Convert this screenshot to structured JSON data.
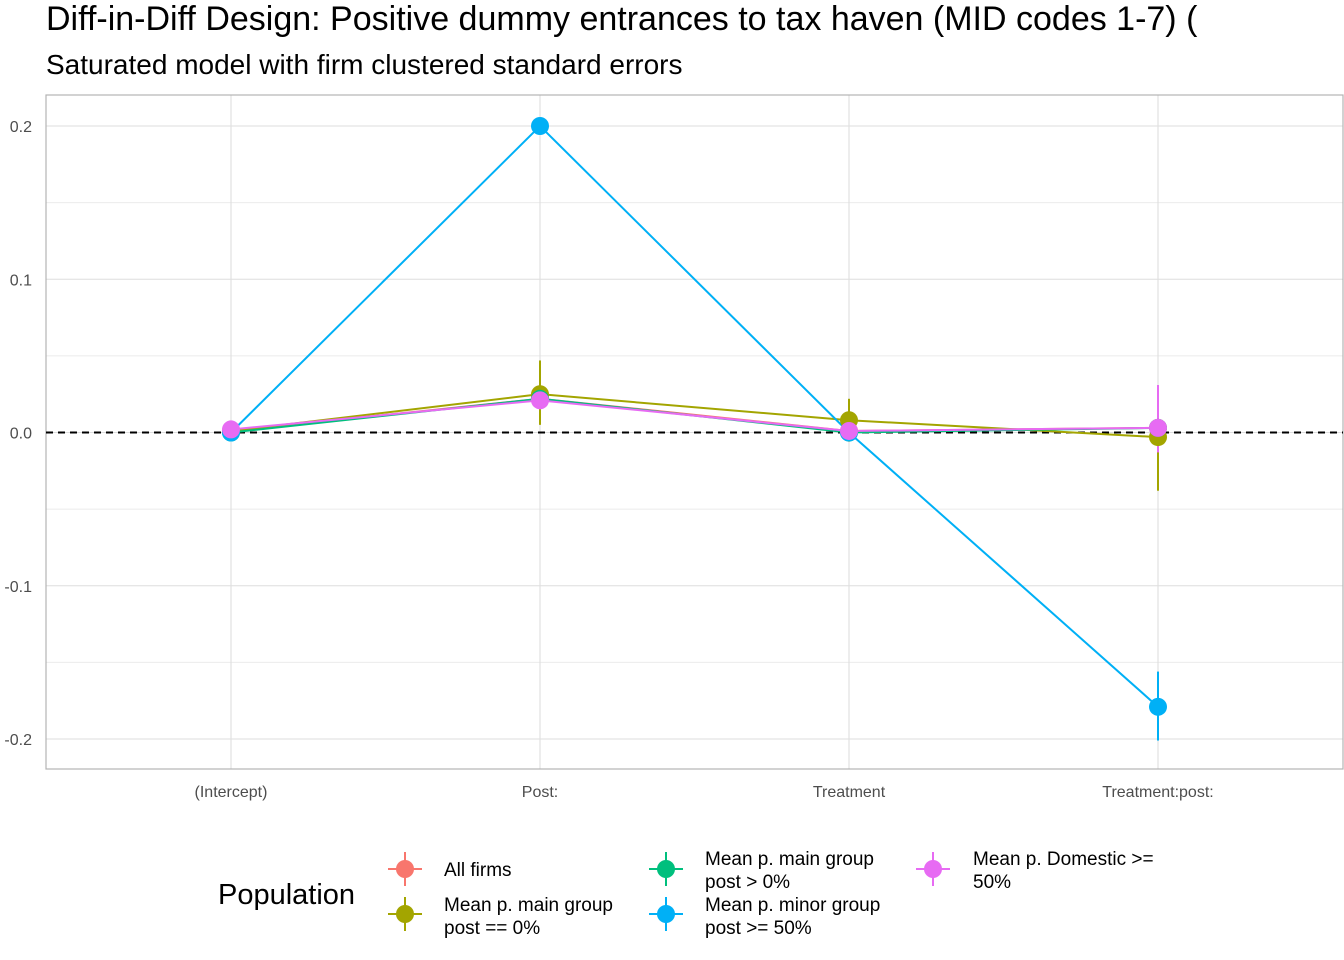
{
  "chart_data": {
    "type": "scatter",
    "title": "Diff-in-Diff Design: Positive dummy entrances to tax haven (MID codes 1-7)  (",
    "subtitle": "Saturated model with firm clustered standard errors",
    "xlabel": "",
    "ylabel": "",
    "categories": [
      "(Intercept)",
      "Post:",
      "Treatment",
      "Treatment:post:"
    ],
    "y_ticks": [
      -0.2,
      -0.1,
      0.0,
      0.1,
      0.2
    ],
    "y_tick_labels": [
      "-0.2",
      "-0.1",
      "0.0",
      "0.1",
      "0.2"
    ],
    "ylim": [
      -0.22,
      0.22
    ],
    "grid": true,
    "reference_line": 0,
    "legend": {
      "title": "Population",
      "position": "bottom"
    },
    "series": [
      {
        "name": "All firms",
        "color": "#F8766D",
        "values": [
          0.001,
          0.022,
          0.001,
          0.003
        ],
        "lower": [
          0.0,
          0.021,
          0.0,
          0.002
        ],
        "upper": [
          0.002,
          0.023,
          0.002,
          0.004
        ]
      },
      {
        "name": "Mean p. main group\npost == 0%",
        "color": "#A3A500",
        "values": [
          0.001,
          0.025,
          0.008,
          -0.003
        ],
        "lower": [
          0.0,
          0.005,
          -0.006,
          -0.038
        ],
        "upper": [
          0.002,
          0.047,
          0.022,
          0.031
        ]
      },
      {
        "name": "Mean p. main group\npost > 0%",
        "color": "#00BF7D",
        "values": [
          0.0,
          0.022,
          0.0,
          0.003
        ],
        "lower": [
          0.0,
          0.021,
          -0.001,
          0.002
        ],
        "upper": [
          0.0,
          0.023,
          0.001,
          0.004
        ]
      },
      {
        "name": "Mean p. minor group\npost >= 50%",
        "color": "#00B0F6",
        "values": [
          0.0,
          0.2,
          0.0,
          -0.179
        ],
        "lower": [
          0.0,
          0.2,
          0.0,
          -0.201
        ],
        "upper": [
          0.0,
          0.2,
          0.0,
          -0.156
        ]
      },
      {
        "name": "Mean p. Domestic >=\n50%",
        "color": "#E76BF3",
        "values": [
          0.002,
          0.021,
          0.001,
          0.003
        ],
        "lower": [
          0.001,
          0.02,
          0.0,
          -0.013
        ],
        "upper": [
          0.003,
          0.022,
          0.002,
          0.031
        ]
      }
    ]
  }
}
